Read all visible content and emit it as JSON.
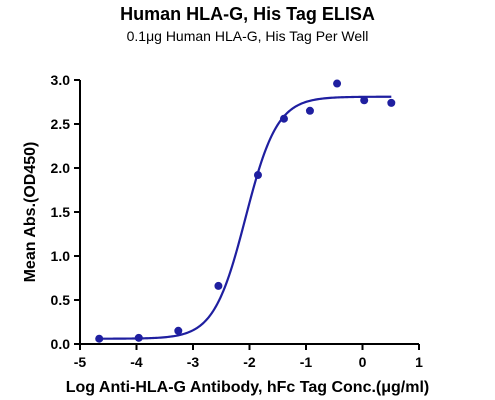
{
  "chart_data": {
    "type": "scatter",
    "title": "Human HLA-G, His Tag ELISA",
    "subtitle": "0.1μg Human HLA-G, His Tag Per Well",
    "xlabel": "Log Anti-HLA-G Antibody, hFc Tag Conc.(μg/ml)",
    "ylabel": "Mean Abs.(OD450)",
    "xlim": [
      -5,
      1
    ],
    "ylim": [
      0,
      3.0
    ],
    "x_ticks": [
      -5,
      -4,
      -3,
      -2,
      -1,
      0,
      1
    ],
    "y_ticks": [
      0.0,
      0.5,
      1.0,
      1.5,
      2.0,
      2.5,
      3.0
    ],
    "x_tick_labels": [
      "-5",
      "-4",
      "-3",
      "-2",
      "-1",
      "0",
      "1"
    ],
    "y_tick_labels": [
      "0.0",
      "0.5",
      "1.0",
      "1.5",
      "2.0",
      "2.5",
      "3.0"
    ],
    "grid": false,
    "color": "#1f1fa0",
    "series": [
      {
        "x": [
          -4.66,
          -3.96,
          -3.26,
          -2.55,
          -1.85,
          -1.39,
          -0.93,
          -0.45,
          0.03,
          0.51
        ],
        "y": [
          0.06,
          0.07,
          0.15,
          0.66,
          1.92,
          2.56,
          2.65,
          2.96,
          2.77,
          2.74
        ],
        "fit": {
          "model": "4PL",
          "bottom": 0.06,
          "top": 2.81,
          "log_ec50": -2.07,
          "hill_slope": 1.55
        }
      }
    ]
  }
}
